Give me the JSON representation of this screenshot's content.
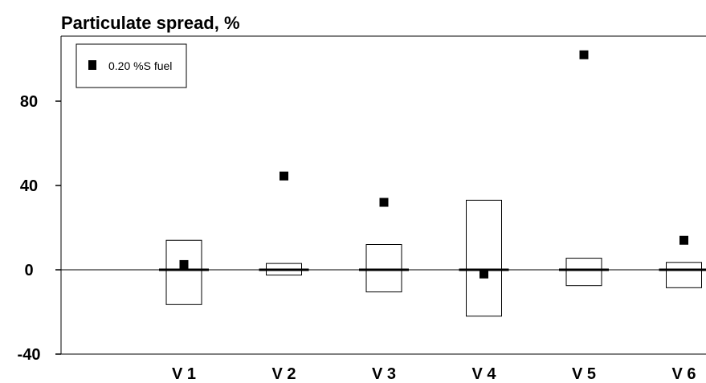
{
  "chart_data": {
    "type": "scatter",
    "title": "Particulate spread, %",
    "xlabel": "",
    "ylabel": "",
    "categories": [
      "V 1",
      "V 2",
      "V 3",
      "V 4",
      "V 5",
      "V 6"
    ],
    "ylim": [
      -40,
      110
    ],
    "yticks": [
      80,
      40,
      0,
      -40
    ],
    "ytick_labels": [
      "80",
      "40",
      "0",
      "-40"
    ],
    "grid": false,
    "zero_line": true,
    "legend": {
      "placement": "top-left",
      "entries": [
        "0.20 %S fuel"
      ]
    },
    "series": [
      {
        "name": "0.20 %S fuel",
        "marker": "square",
        "color": "#000000",
        "values": [
          2.5,
          44.5,
          32,
          -2,
          102,
          14
        ]
      }
    ],
    "ranges": {
      "low": [
        -16.5,
        -2.5,
        -10.5,
        -22,
        -7.5,
        -8.5
      ],
      "high": [
        14,
        3,
        12,
        33,
        5.5,
        3.5
      ]
    },
    "tick_colors": {
      "axis": "#000000"
    }
  }
}
